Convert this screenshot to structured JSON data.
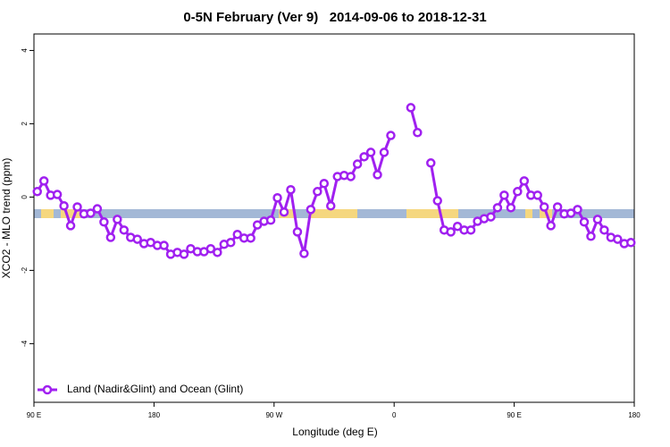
{
  "chart_data": {
    "type": "line",
    "title": "0-5N February (Ver 9)   2014-09-06 to 2018-12-31",
    "xlabel": "Longitude (deg E)",
    "ylabel": "XCO2 - MLO trend (ppm)",
    "x": [
      92.5,
      97.5,
      102.5,
      107.5,
      112.5,
      117.5,
      122.5,
      127.5,
      132.5,
      137.5,
      142.5,
      147.5,
      152.5,
      157.5,
      162.5,
      167.5,
      172.5,
      177.5,
      182.5,
      187.5,
      192.5,
      197.5,
      202.5,
      207.5,
      212.5,
      217.5,
      222.5,
      227.5,
      232.5,
      237.5,
      242.5,
      247.5,
      252.5,
      257.5,
      262.5,
      267.5,
      272.5,
      277.5,
      282.5,
      287.5,
      292.5,
      297.5,
      302.5,
      307.5,
      312.5,
      317.5,
      322.5,
      327.5,
      332.5,
      337.5,
      342.5,
      347.5,
      352.5,
      357.5,
      362.5,
      367.5,
      372.5,
      377.5,
      382.5,
      387.5,
      392.5,
      397.5,
      402.5,
      407.5,
      412.5,
      417.5,
      422.5,
      427.5,
      432.5,
      437.5,
      442.5,
      447.5,
      452.5,
      457.5,
      462.5,
      467.5,
      472.5,
      477.5,
      482.5,
      487.5,
      492.5,
      497.5,
      502.5,
      507.5,
      512.5,
      517.5,
      522.5,
      527.5,
      532.5,
      537.5
    ],
    "series": [
      {
        "name": "Land (Nadir&Glint) and Ocean (Glint)",
        "color": "#a020f0",
        "values": [
          0.15,
          0.44,
          0.05,
          0.07,
          -0.24,
          -0.78,
          -0.27,
          -0.46,
          -0.44,
          -0.32,
          -0.68,
          -1.1,
          -0.61,
          -0.9,
          -1.1,
          -1.15,
          -1.27,
          -1.24,
          -1.32,
          -1.32,
          -1.56,
          -1.51,
          -1.56,
          -1.41,
          -1.49,
          -1.49,
          -1.41,
          -1.51,
          -1.29,
          -1.24,
          -1.02,
          -1.12,
          -1.12,
          -0.76,
          -0.66,
          -0.63,
          -0.02,
          -0.41,
          0.2,
          -0.95,
          -1.54,
          -0.34,
          0.15,
          0.37,
          -0.24,
          0.56,
          0.59,
          0.56,
          0.9,
          1.1,
          1.22,
          0.61,
          1.22,
          1.68,
          null,
          null,
          2.44,
          1.76,
          null,
          0.93,
          -0.1,
          -0.9,
          -0.95,
          -0.8,
          -0.9,
          -0.9,
          -0.66,
          -0.59,
          -0.54,
          -0.29,
          0.05,
          -0.29,
          0.15,
          0.44,
          0.05,
          0.05,
          -0.27,
          -0.78,
          -0.27,
          -0.46,
          -0.44,
          -0.34,
          -0.68,
          -1.07,
          -0.61,
          -0.9,
          -1.1,
          -1.15,
          -1.27,
          -1.24
        ]
      }
    ],
    "xlim": [
      90,
      540
    ],
    "xticks": [
      {
        "value": 90,
        "label": "90 E"
      },
      180,
      {
        "value": 270,
        "label": "90 W"
      },
      {
        "value": 360,
        "label": "0"
      },
      {
        "value": 450,
        "label": "90 E"
      },
      {
        "value": 540,
        "label": "180"
      }
    ],
    "ylim": [
      -5.6,
      4.45
    ],
    "yticks": [
      -4,
      -2,
      0,
      2,
      4
    ],
    "legend": "bottomleft"
  }
}
